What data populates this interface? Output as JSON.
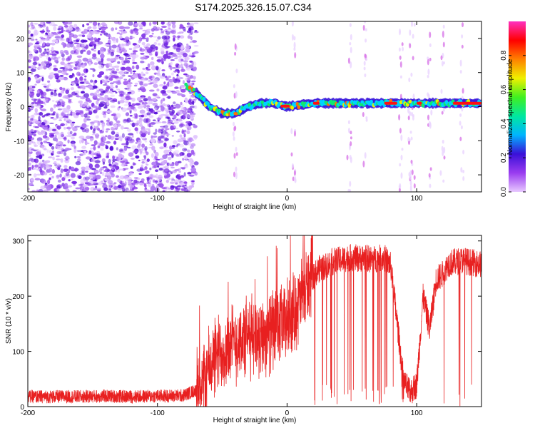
{
  "chart_data": [
    {
      "type": "heatmap",
      "title": "S174.2025.326.15.07.C34",
      "xlabel": "Height of straight line (km)",
      "ylabel": "Frequency (Hz)",
      "xlim": [
        -200,
        150
      ],
      "ylim": [
        -25,
        25
      ],
      "x_ticks": [
        -200,
        -100,
        0,
        100
      ],
      "y_ticks": [
        -20,
        -10,
        0,
        10,
        20
      ],
      "colorbar": {
        "label": "Normalized spectral amplitude",
        "range": [
          0.0,
          1.0
        ],
        "ticks": [
          "0.0",
          "0.2",
          "0.4",
          "0.6",
          "0.8"
        ],
        "colors": [
          "#ffffff",
          "#e8c8ff",
          "#9a3cf0",
          "#3a10d8",
          "#00b4ff",
          "#00e8a0",
          "#40f020",
          "#f0f000",
          "#ff8000",
          "#ff0000",
          "#ff30c0"
        ]
      },
      "description_series": {
        "name": "dominant frequency ridge",
        "x": [
          -78,
          -70,
          -60,
          -50,
          -40,
          -30,
          -20,
          -10,
          0,
          20,
          50,
          80,
          100,
          120,
          150
        ],
        "y": [
          6,
          4,
          0,
          -2,
          -2,
          0,
          1,
          1,
          0,
          1,
          1,
          1,
          1,
          1,
          1
        ]
      }
    },
    {
      "type": "line",
      "title": "",
      "xlabel": "Height of straight line (km)",
      "ylabel": "SNR (10 * v/v)",
      "xlim": [
        -200,
        150
      ],
      "ylim": [
        0,
        310
      ],
      "x_ticks": [
        -200,
        -100,
        0,
        100
      ],
      "y_ticks": [
        0,
        100,
        200,
        300
      ],
      "series": [
        {
          "name": "SNR",
          "color": "#e82020",
          "x": [
            -200,
            -180,
            -160,
            -140,
            -120,
            -100,
            -80,
            -70,
            -65,
            -60,
            -55,
            -50,
            -45,
            -40,
            -35,
            -30,
            -25,
            -20,
            -15,
            -10,
            -5,
            0,
            5,
            10,
            15,
            20,
            25,
            30,
            35,
            40,
            45,
            50,
            55,
            60,
            65,
            70,
            75,
            80,
            85,
            90,
            95,
            100,
            105,
            110,
            115,
            120,
            125,
            130,
            135,
            140,
            145,
            150
          ],
          "y": [
            18,
            18,
            18,
            19,
            18,
            19,
            20,
            30,
            45,
            70,
            90,
            100,
            110,
            115,
            120,
            125,
            130,
            130,
            135,
            140,
            145,
            155,
            170,
            190,
            215,
            235,
            250,
            255,
            262,
            265,
            268,
            270,
            268,
            270,
            266,
            268,
            270,
            255,
            150,
            45,
            25,
            40,
            200,
            140,
            230,
            240,
            260,
            262,
            265,
            262,
            260,
            258
          ]
        }
      ]
    }
  ]
}
